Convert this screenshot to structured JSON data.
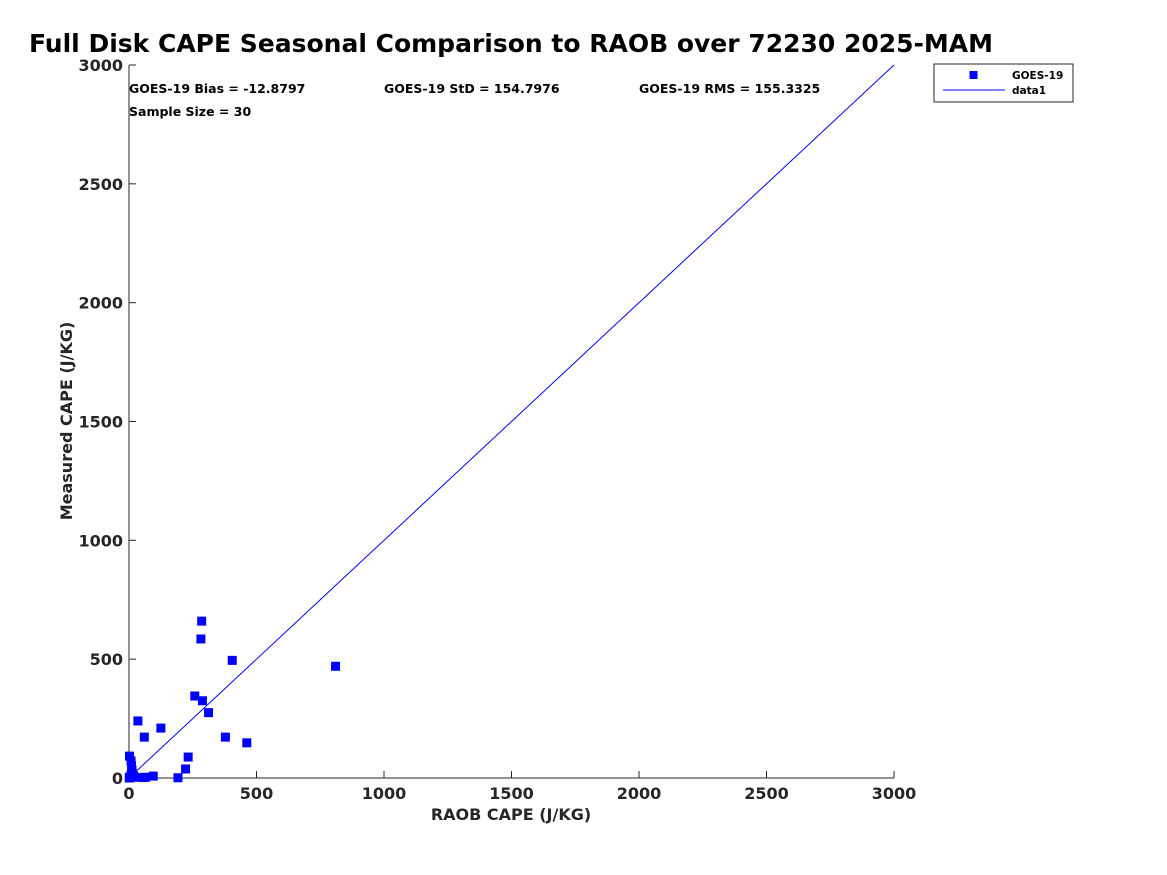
{
  "chart_data": {
    "type": "scatter",
    "title": "Full Disk CAPE Seasonal Comparison to RAOB over 72230 2025-MAM",
    "xlabel": "RAOB CAPE (J/KG)",
    "ylabel": "Measured CAPE (J/KG)",
    "xlim": [
      0,
      3000
    ],
    "ylim": [
      0,
      3000
    ],
    "xticks": [
      0,
      500,
      1000,
      1500,
      2000,
      2500,
      3000
    ],
    "yticks": [
      0,
      500,
      1000,
      1500,
      2000,
      2500,
      3000
    ],
    "grid": false,
    "legend_position": "top-right",
    "marker_color": "#0000ff",
    "line_color": "#0000ff",
    "stats": [
      "GOES-19 Bias = -12.8797",
      "GOES-19 StD = 154.7976",
      "GOES-19 RMS = 155.3325",
      "Sample Size = 30"
    ],
    "series": [
      {
        "name": "GOES-19",
        "kind": "scatter",
        "points": [
          [
            285,
            660
          ],
          [
            282,
            585
          ],
          [
            405,
            495
          ],
          [
            810,
            470
          ],
          [
            258,
            345
          ],
          [
            288,
            325
          ],
          [
            312,
            275
          ],
          [
            35,
            240
          ],
          [
            125,
            210
          ],
          [
            60,
            172
          ],
          [
            378,
            172
          ],
          [
            462,
            148
          ],
          [
            232,
            88
          ],
          [
            222,
            38
          ],
          [
            95,
            8
          ],
          [
            65,
            3
          ],
          [
            55,
            2
          ],
          [
            192,
            1
          ],
          [
            2,
            92
          ],
          [
            8,
            72
          ],
          [
            10,
            52
          ],
          [
            12,
            32
          ],
          [
            15,
            12
          ],
          [
            22,
            3
          ],
          [
            4,
            5
          ],
          [
            6,
            2
          ],
          [
            3,
            1
          ],
          [
            18,
            8
          ],
          [
            9,
            15
          ],
          [
            1,
            0
          ]
        ]
      },
      {
        "name": "data1",
        "kind": "line",
        "points": [
          [
            0,
            0
          ],
          [
            3000,
            3000
          ]
        ]
      }
    ]
  }
}
